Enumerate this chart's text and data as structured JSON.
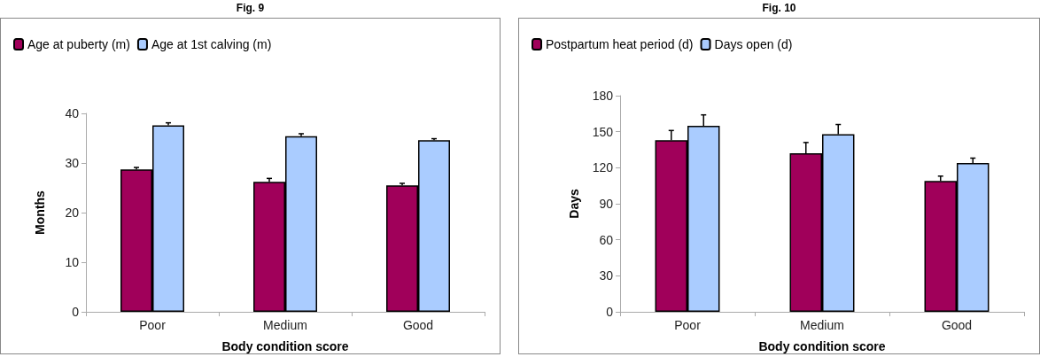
{
  "chart_data": [
    {
      "type": "bar",
      "title": "Fig. 9",
      "xlabel": "Body condition score",
      "ylabel": "Months",
      "categories": [
        "Poor",
        "Medium",
        "Good"
      ],
      "series": [
        {
          "name": "Age at puberty (m)",
          "color": "#a0005a",
          "values": [
            28.7,
            26.2,
            25.5
          ],
          "errors": [
            0.4,
            0.7,
            0.4
          ]
        },
        {
          "name": "Age at 1st calving (m)",
          "color": "#aaccff",
          "values": [
            37.6,
            35.4,
            34.6
          ],
          "errors": [
            0.5,
            0.5,
            0.3
          ]
        }
      ],
      "ylim": [
        0,
        40
      ],
      "yticks": [
        0,
        10,
        20,
        30,
        40
      ],
      "grid": false,
      "legend": "top left"
    },
    {
      "type": "bar",
      "title": "Fig. 10",
      "xlabel": "Body condition score",
      "ylabel": "Days",
      "categories": [
        "Poor",
        "Medium",
        "Good"
      ],
      "series": [
        {
          "name": "Postpartum heat period (d)",
          "color": "#a0005a",
          "values": [
            143,
            132,
            109
          ],
          "errors": [
            8,
            9,
            4
          ]
        },
        {
          "name": "Days open (d)",
          "color": "#aaccff",
          "values": [
            155,
            148,
            124
          ],
          "errors": [
            9,
            8,
            4
          ]
        }
      ],
      "ylim": [
        0,
        180
      ],
      "yticks": [
        0,
        30,
        60,
        90,
        120,
        150,
        180
      ],
      "grid": false,
      "legend": "top left"
    }
  ]
}
